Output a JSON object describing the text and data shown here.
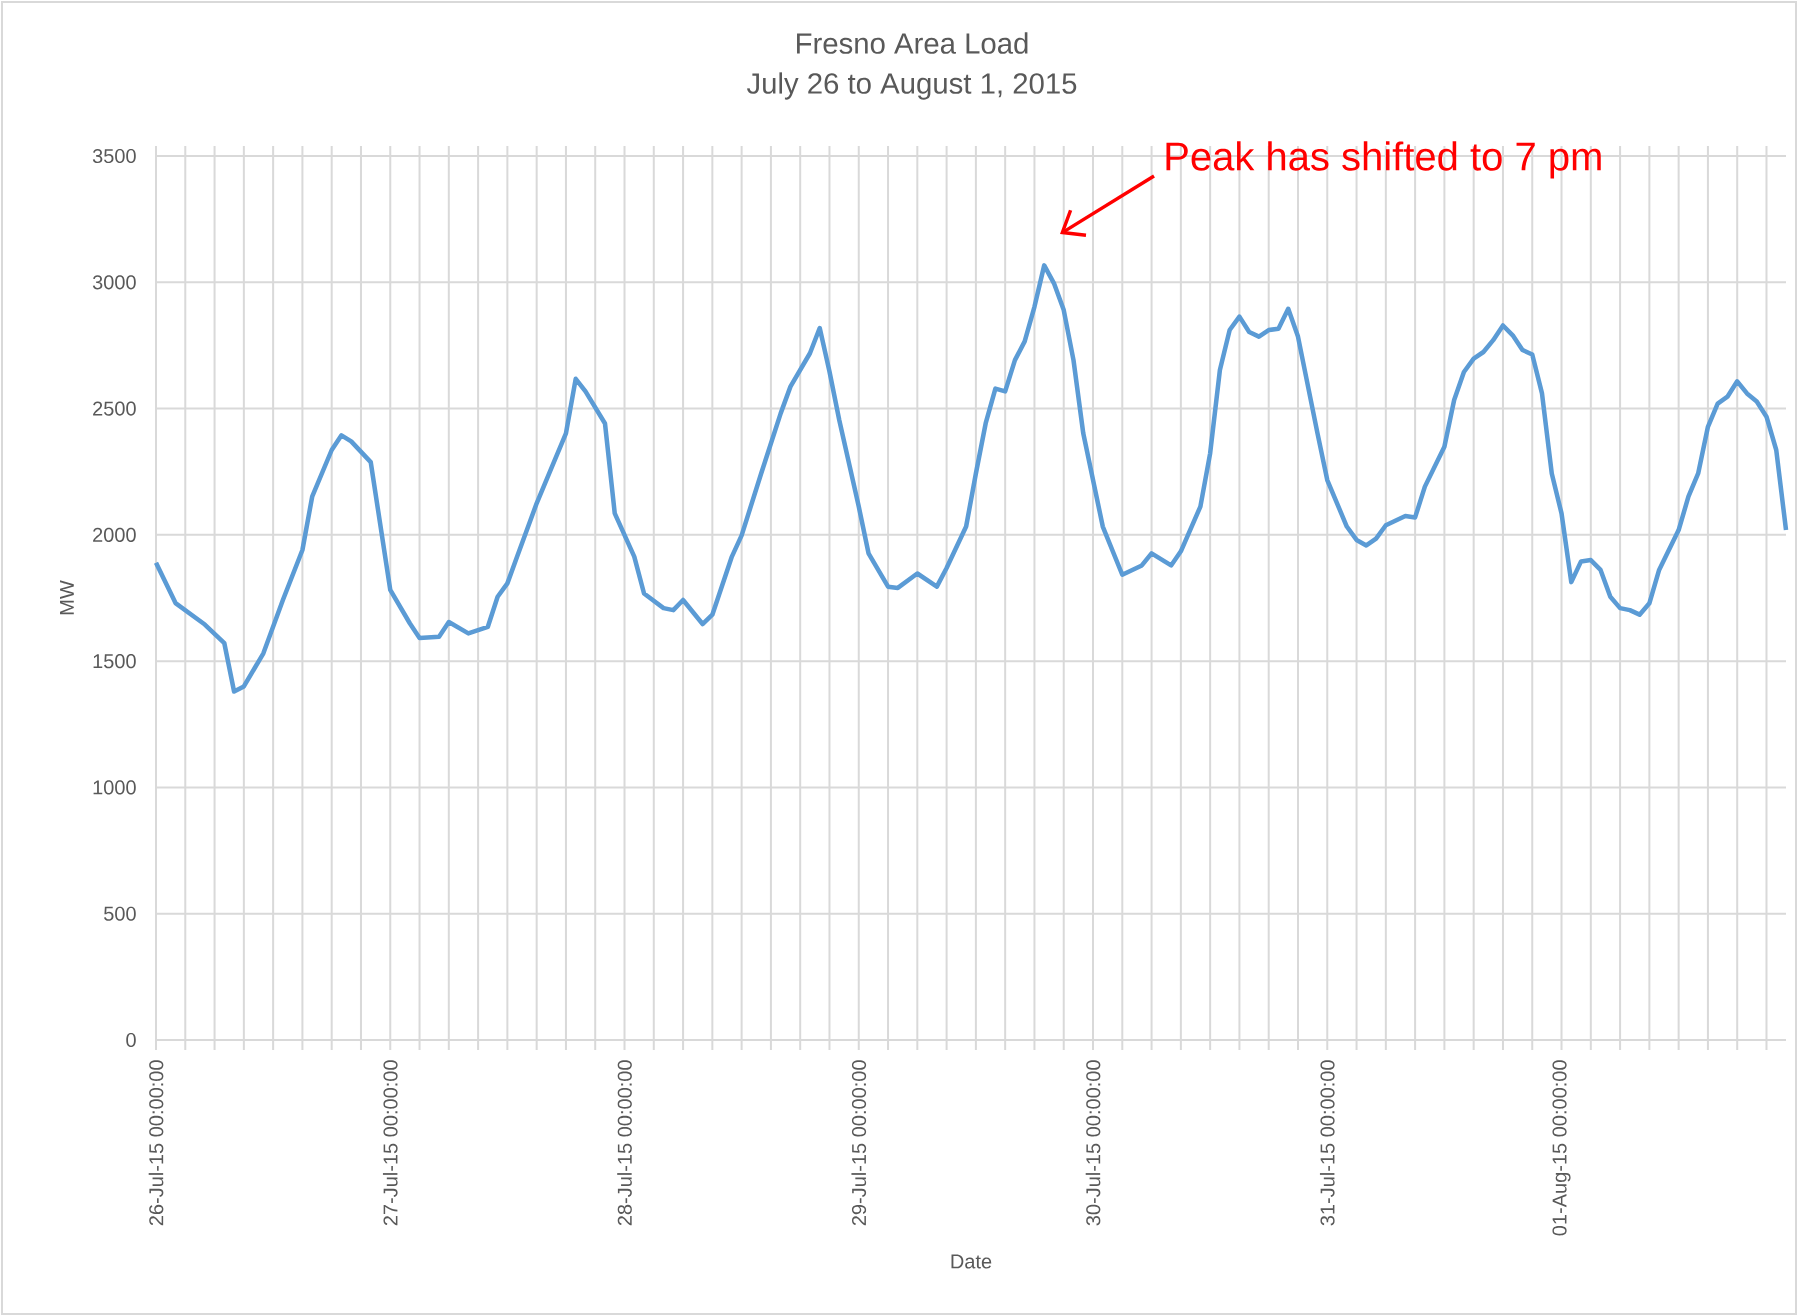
{
  "chart_data": {
    "type": "line",
    "title": "Fresno Area Load",
    "subtitle": "July 26 to August 1, 2015",
    "xlabel": "Date",
    "ylabel": "MW",
    "color": "#5b9bd5",
    "grid": true,
    "x": [
      "2015-07-26T00:00",
      "2015-07-26T02:00",
      "2015-07-26T05:00",
      "2015-07-26T07:00",
      "2015-07-26T08:00",
      "2015-07-26T09:00",
      "2015-07-26T11:00",
      "2015-07-26T13:00",
      "2015-07-26T15:00",
      "2015-07-26T16:00",
      "2015-07-26T18:00",
      "2015-07-26T19:00",
      "2015-07-26T20:00",
      "2015-07-26T22:00",
      "2015-07-27T00:00",
      "2015-07-27T02:00",
      "2015-07-27T03:00",
      "2015-07-27T05:00",
      "2015-07-27T06:00",
      "2015-07-27T08:00",
      "2015-07-27T10:00",
      "2015-07-27T11:00",
      "2015-07-27T12:00",
      "2015-07-27T13:00",
      "2015-07-27T15:00",
      "2015-07-27T17:00",
      "2015-07-27T18:00",
      "2015-07-27T19:00",
      "2015-07-27T20:00",
      "2015-07-27T22:00",
      "2015-07-27T23:00",
      "2015-07-28T01:00",
      "2015-07-28T02:00",
      "2015-07-28T04:00",
      "2015-07-28T05:00",
      "2015-07-28T06:00",
      "2015-07-28T08:00",
      "2015-07-28T09:00",
      "2015-07-28T11:00",
      "2015-07-28T12:00",
      "2015-07-28T14:00",
      "2015-07-28T16:00",
      "2015-07-28T17:00",
      "2015-07-28T19:00",
      "2015-07-28T20:00",
      "2015-07-28T21:00",
      "2015-07-28T22:00",
      "2015-07-29T00:00",
      "2015-07-29T01:00",
      "2015-07-29T03:00",
      "2015-07-29T04:00",
      "2015-07-29T06:00",
      "2015-07-29T08:00",
      "2015-07-29T09:00",
      "2015-07-29T11:00",
      "2015-07-29T12:00",
      "2015-07-29T13:00",
      "2015-07-29T14:00",
      "2015-07-29T15:00",
      "2015-07-29T16:00",
      "2015-07-29T17:00",
      "2015-07-29T18:00",
      "2015-07-29T19:00",
      "2015-07-29T20:00",
      "2015-07-29T21:00",
      "2015-07-29T22:00",
      "2015-07-29T23:00",
      "2015-07-30T01:00",
      "2015-07-30T03:00",
      "2015-07-30T05:00",
      "2015-07-30T06:00",
      "2015-07-30T08:00",
      "2015-07-30T09:00",
      "2015-07-30T11:00",
      "2015-07-30T12:00",
      "2015-07-30T13:00",
      "2015-07-30T14:00",
      "2015-07-30T15:00",
      "2015-07-30T16:00",
      "2015-07-30T17:00",
      "2015-07-30T18:00",
      "2015-07-30T19:00",
      "2015-07-30T20:00",
      "2015-07-30T21:00",
      "2015-07-30T23:00",
      "2015-07-31T00:00",
      "2015-07-31T02:00",
      "2015-07-31T03:00",
      "2015-07-31T04:00",
      "2015-07-31T05:00",
      "2015-07-31T06:00",
      "2015-07-31T08:00",
      "2015-07-31T09:00",
      "2015-07-31T10:00",
      "2015-07-31T12:00",
      "2015-07-31T13:00",
      "2015-07-31T14:00",
      "2015-07-31T15:00",
      "2015-07-31T16:00",
      "2015-07-31T17:00",
      "2015-07-31T18:00",
      "2015-07-31T19:00",
      "2015-07-31T20:00",
      "2015-07-31T21:00",
      "2015-07-31T22:00",
      "2015-07-31T23:00",
      "2015-08-01T00:00",
      "2015-08-01T01:00",
      "2015-08-01T02:00",
      "2015-08-01T03:00",
      "2015-08-01T04:00",
      "2015-08-01T05:00",
      "2015-08-01T06:00",
      "2015-08-01T07:00",
      "2015-08-01T08:00",
      "2015-08-01T09:00",
      "2015-08-01T10:00",
      "2015-08-01T12:00",
      "2015-08-01T13:00",
      "2015-08-01T14:00",
      "2015-08-01T15:00",
      "2015-08-01T16:00",
      "2015-08-01T17:00",
      "2015-08-01T18:00",
      "2015-08-01T19:00",
      "2015-08-01T20:00",
      "2015-08-01T21:00",
      "2015-08-01T22:00",
      "2015-08-01T23:00"
    ],
    "values": [
      1890,
      1730,
      1645,
      1571,
      1380,
      1400,
      1531,
      1742,
      1940,
      2151,
      2336,
      2394,
      2370,
      2288,
      1782,
      1650,
      1592,
      1597,
      1655,
      1610,
      1636,
      1755,
      1808,
      1914,
      2125,
      2310,
      2402,
      2618,
      2568,
      2441,
      2085,
      1914,
      1768,
      1710,
      1702,
      1742,
      1647,
      1684,
      1914,
      1998,
      2243,
      2481,
      2587,
      2719,
      2819,
      2647,
      2455,
      2112,
      1927,
      1795,
      1790,
      1847,
      1795,
      1869,
      2033,
      2243,
      2441,
      2579,
      2568,
      2692,
      2766,
      2903,
      3067,
      2996,
      2890,
      2692,
      2402,
      2033,
      1842,
      1879,
      1927,
      1879,
      1935,
      2112,
      2323,
      2653,
      2811,
      2864,
      2803,
      2785,
      2811,
      2816,
      2895,
      2785,
      2402,
      2217,
      2033,
      1980,
      1958,
      1985,
      2038,
      2075,
      2069,
      2191,
      2349,
      2534,
      2645,
      2698,
      2724,
      2771,
      2829,
      2790,
      2732,
      2714,
      2560,
      2243,
      2085,
      1813,
      1895,
      1900,
      1861,
      1755,
      1710,
      1702,
      1684,
      1729,
      1861,
      2019,
      2151,
      2243,
      2428,
      2520,
      2547,
      2608,
      2560,
      2528,
      2468,
      2336,
      2019
    ],
    "xlim": [
      "2015-07-26T00:00",
      "2015-08-01T23:00"
    ],
    "xticks": [
      {
        "value": "2015-07-26T00:00",
        "label": "26-Jul-15 00:00:00"
      },
      {
        "value": "2015-07-26T03:00",
        "label": null
      },
      {
        "value": "2015-07-26T06:00",
        "label": null
      },
      {
        "value": "2015-07-26T09:00",
        "label": null
      },
      {
        "value": "2015-07-26T12:00",
        "label": null
      },
      {
        "value": "2015-07-26T15:00",
        "label": null
      },
      {
        "value": "2015-07-26T18:00",
        "label": null
      },
      {
        "value": "2015-07-26T21:00",
        "label": null
      },
      {
        "value": "2015-07-27T00:00",
        "label": "27-Jul-15 00:00:00"
      },
      {
        "value": "2015-07-27T03:00",
        "label": null
      },
      {
        "value": "2015-07-27T06:00",
        "label": null
      },
      {
        "value": "2015-07-27T09:00",
        "label": null
      },
      {
        "value": "2015-07-27T12:00",
        "label": null
      },
      {
        "value": "2015-07-27T15:00",
        "label": null
      },
      {
        "value": "2015-07-27T18:00",
        "label": null
      },
      {
        "value": "2015-07-27T21:00",
        "label": null
      },
      {
        "value": "2015-07-28T00:00",
        "label": "28-Jul-15 00:00:00"
      },
      {
        "value": "2015-07-28T03:00",
        "label": null
      },
      {
        "value": "2015-07-28T06:00",
        "label": null
      },
      {
        "value": "2015-07-28T09:00",
        "label": null
      },
      {
        "value": "2015-07-28T12:00",
        "label": null
      },
      {
        "value": "2015-07-28T15:00",
        "label": null
      },
      {
        "value": "2015-07-28T18:00",
        "label": null
      },
      {
        "value": "2015-07-28T21:00",
        "label": null
      },
      {
        "value": "2015-07-29T00:00",
        "label": "29-Jul-15 00:00:00"
      },
      {
        "value": "2015-07-29T03:00",
        "label": null
      },
      {
        "value": "2015-07-29T06:00",
        "label": null
      },
      {
        "value": "2015-07-29T09:00",
        "label": null
      },
      {
        "value": "2015-07-29T12:00",
        "label": null
      },
      {
        "value": "2015-07-29T15:00",
        "label": null
      },
      {
        "value": "2015-07-29T18:00",
        "label": null
      },
      {
        "value": "2015-07-29T21:00",
        "label": null
      },
      {
        "value": "2015-07-30T00:00",
        "label": "30-Jul-15 00:00:00"
      },
      {
        "value": "2015-07-30T03:00",
        "label": null
      },
      {
        "value": "2015-07-30T06:00",
        "label": null
      },
      {
        "value": "2015-07-30T09:00",
        "label": null
      },
      {
        "value": "2015-07-30T12:00",
        "label": null
      },
      {
        "value": "2015-07-30T15:00",
        "label": null
      },
      {
        "value": "2015-07-30T18:00",
        "label": null
      },
      {
        "value": "2015-07-30T21:00",
        "label": null
      },
      {
        "value": "2015-07-31T00:00",
        "label": "31-Jul-15 00:00:00"
      },
      {
        "value": "2015-07-31T03:00",
        "label": null
      },
      {
        "value": "2015-07-31T06:00",
        "label": null
      },
      {
        "value": "2015-07-31T09:00",
        "label": null
      },
      {
        "value": "2015-07-31T12:00",
        "label": null
      },
      {
        "value": "2015-07-31T15:00",
        "label": null
      },
      {
        "value": "2015-07-31T18:00",
        "label": null
      },
      {
        "value": "2015-07-31T21:00",
        "label": null
      },
      {
        "value": "2015-08-01T00:00",
        "label": "01-Aug-15 00:00:00"
      },
      {
        "value": "2015-08-01T03:00",
        "label": null
      },
      {
        "value": "2015-08-01T06:00",
        "label": null
      },
      {
        "value": "2015-08-01T09:00",
        "label": null
      },
      {
        "value": "2015-08-01T12:00",
        "label": null
      },
      {
        "value": "2015-08-01T15:00",
        "label": null
      },
      {
        "value": "2015-08-01T18:00",
        "label": null
      },
      {
        "value": "2015-08-01T21:00",
        "label": null
      }
    ],
    "ylim": [
      0,
      3500
    ],
    "yticks": [
      0,
      500,
      1000,
      1500,
      2000,
      2500,
      3000,
      3500
    ],
    "annotations": [
      "Peak has shifted to 7 pm"
    ]
  }
}
